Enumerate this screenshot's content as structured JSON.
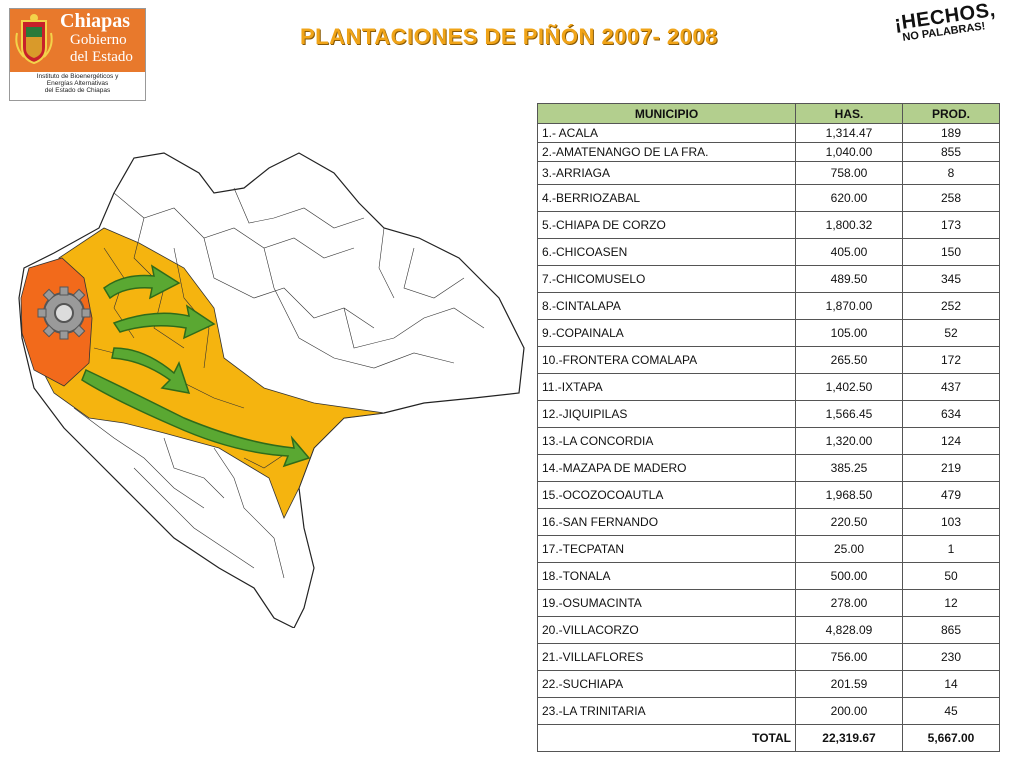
{
  "logo": {
    "line1": "Chiapas",
    "line2": "Gobierno",
    "line3": "del Estado",
    "institute": [
      "Instituto de Bioenergéticos y",
      "Energías Alternativas",
      "del Estado de Chiapas"
    ]
  },
  "title": "PLANTACIONES DE PIÑÓN  2007- 2008",
  "slogan": {
    "line1": "¡HECHOS,",
    "line2": "NO PALABRAS!"
  },
  "colors": {
    "header_bg": "#b3cf8e",
    "title": "#f0a418",
    "map_highlight": "#f5b40f",
    "map_origin": "#f26a1b",
    "arrow": "#5aa832"
  },
  "table": {
    "headers": [
      "MUNICIPIO",
      "HAS.",
      "PROD."
    ],
    "rows": [
      [
        "1.- ACALA",
        "1,314.47",
        "189"
      ],
      [
        "2.-AMATENANGO DE LA FRA.",
        "1,040.00",
        "855"
      ],
      [
        "3.-ARRIAGA",
        "758.00",
        "8"
      ],
      [
        "4.-BERRIOZABAL",
        "620.00",
        "258"
      ],
      [
        "5.-CHIAPA DE CORZO",
        "1,800.32",
        "173"
      ],
      [
        "6.-CHICOASEN",
        "405.00",
        "150"
      ],
      [
        "7.-CHICOMUSELO",
        "489.50",
        "345"
      ],
      [
        "8.-CINTALAPA",
        "1,870.00",
        "252"
      ],
      [
        "9.-COPAINALA",
        "105.00",
        "52"
      ],
      [
        "10.-FRONTERA COMALAPA",
        "265.50",
        "172"
      ],
      [
        "11.-IXTAPA",
        "1,402.50",
        "437"
      ],
      [
        "12.-JIQUIPILAS",
        "1,566.45",
        "634"
      ],
      [
        "13.-LA CONCORDIA",
        "1,320.00",
        "124"
      ],
      [
        "14.-MAZAPA DE MADERO",
        "385.25",
        "219"
      ],
      [
        "15.-OCOZOCOAUTLA",
        "1,968.50",
        "479"
      ],
      [
        "16.-SAN FERNANDO",
        "220.50",
        "103"
      ],
      [
        "17.-TECPATAN",
        "25.00",
        "1"
      ],
      [
        "18.-TONALA",
        "500.00",
        "50"
      ],
      [
        "19.-OSUMACINTA",
        "278.00",
        "12"
      ],
      [
        "20.-VILLACORZO",
        "4,828.09",
        "865"
      ],
      [
        "21.-VILLAFLORES",
        "756.00",
        "230"
      ],
      [
        "22.-SUCHIAPA",
        "201.59",
        "14"
      ],
      [
        "23.-LA TRINITARIA",
        "200.00",
        "45"
      ]
    ],
    "total": {
      "label": "TOTAL",
      "has": "22,319.67",
      "prod": "5,667.00"
    }
  }
}
